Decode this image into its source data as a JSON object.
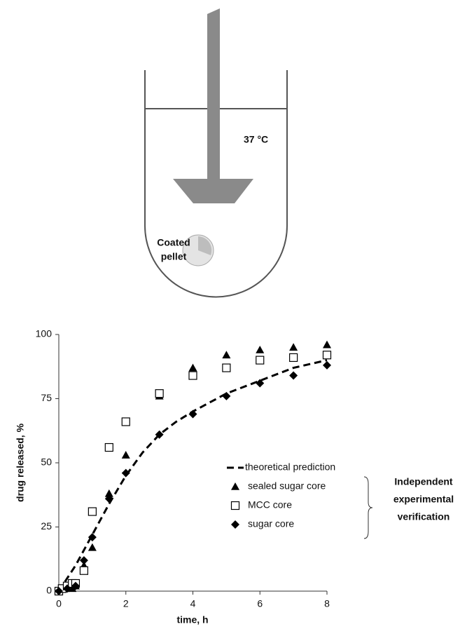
{
  "diagram": {
    "temperature_label": "37 °C",
    "pellet_label": [
      "Coated",
      "pellet"
    ]
  },
  "chart_data": {
    "type": "scatter",
    "x_label": "time, h",
    "y_label": "drug released, %",
    "xlim": [
      0,
      8
    ],
    "xticks": [
      0,
      2,
      4,
      6,
      8
    ],
    "ylim": [
      0,
      100
    ],
    "yticks": [
      0,
      25,
      50,
      75,
      100
    ],
    "legend": "right",
    "annotation": [
      "Independent",
      "experimental",
      "verification"
    ],
    "series": [
      {
        "name": "theoretical prediction",
        "color": "#000000",
        "marker": "none",
        "line_style": "dashed",
        "x": [
          0,
          0.5,
          1,
          1.5,
          2,
          2.5,
          3,
          3.5,
          4,
          5,
          6,
          7,
          8
        ],
        "values": [
          0,
          10,
          22,
          34,
          45,
          54,
          61,
          66,
          70,
          77,
          82,
          87,
          90
        ]
      },
      {
        "name": "sealed sugar core",
        "color": "#000000",
        "marker": "triangle",
        "line_style": "none",
        "x": [
          0,
          0.1,
          0.2,
          0.3,
          0.4,
          0.5,
          0.75,
          1,
          1.5,
          2,
          3,
          4,
          5,
          6,
          7,
          8
        ],
        "values": [
          0,
          1,
          1,
          2,
          1,
          2,
          10,
          17,
          38,
          53,
          76,
          87,
          92,
          94,
          95,
          96
        ]
      },
      {
        "name": "MCC core",
        "color": "#000000",
        "marker": "square",
        "line_style": "none",
        "x": [
          0,
          0.1,
          0.25,
          0.4,
          0.5,
          0.75,
          1,
          1.5,
          2,
          3,
          4,
          5,
          6,
          7,
          8
        ],
        "values": [
          0,
          1,
          2,
          3,
          3,
          8,
          31,
          56,
          66,
          77,
          84,
          87,
          90,
          91,
          92
        ]
      },
      {
        "name": "sugar core",
        "color": "#000000",
        "marker": "diamond",
        "line_style": "none",
        "x": [
          0,
          0.25,
          0.5,
          0.75,
          1,
          1.5,
          2,
          3,
          4,
          5,
          6,
          7,
          8
        ],
        "values": [
          0,
          1,
          2,
          12,
          21,
          36,
          46,
          61,
          69,
          76,
          81,
          84,
          88
        ]
      }
    ]
  }
}
